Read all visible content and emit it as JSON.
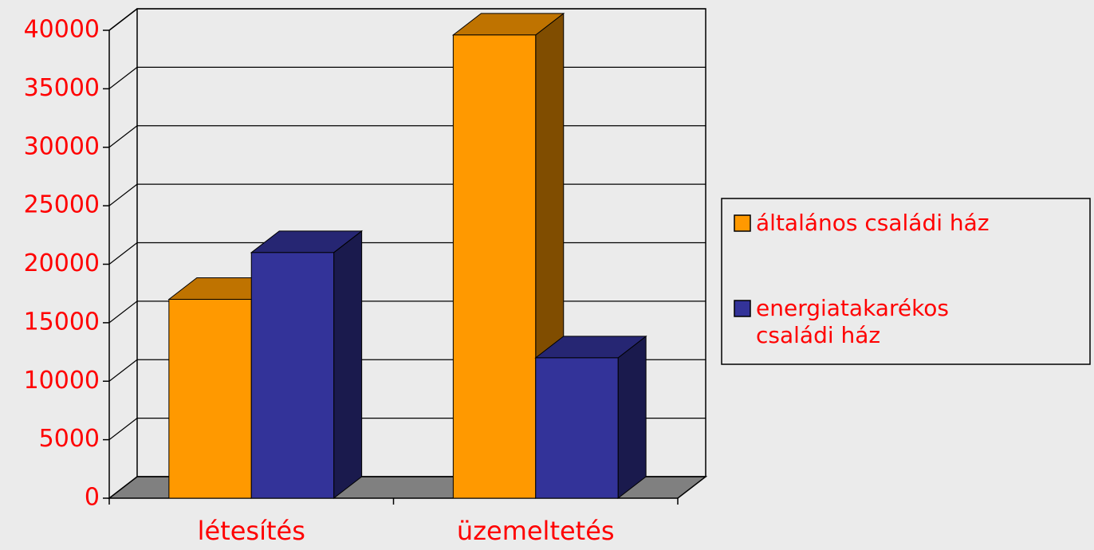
{
  "chart_data": {
    "type": "bar3d",
    "categories": [
      "létesítés",
      "üzemeltetés"
    ],
    "series": [
      {
        "name": "általános családi ház",
        "color": "#ff9900",
        "values": [
          17000,
          39600
        ]
      },
      {
        "name": "energiatakarékos családi ház",
        "color": "#333399",
        "values": [
          21000,
          12000
        ]
      }
    ],
    "ylim": [
      0,
      40000
    ],
    "yticks": [
      0,
      5000,
      10000,
      15000,
      20000,
      25000,
      30000,
      35000,
      40000
    ],
    "grid": true,
    "legend": "right"
  }
}
